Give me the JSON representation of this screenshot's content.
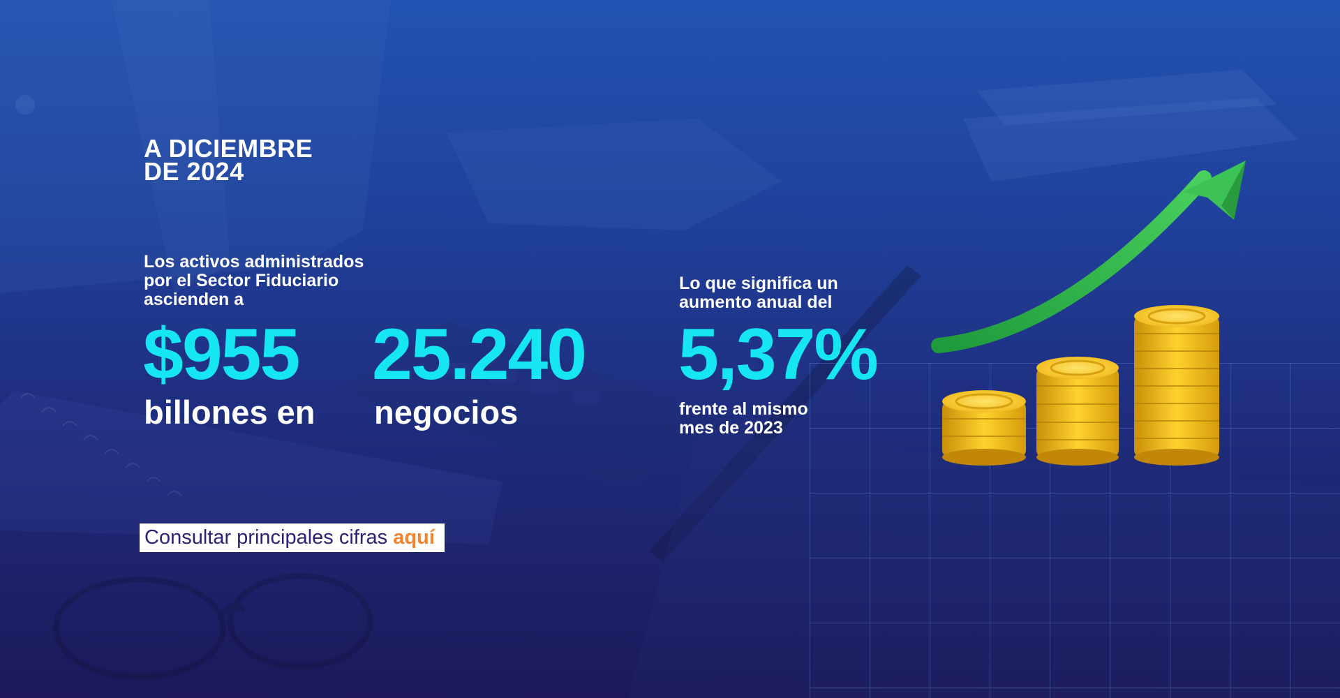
{
  "header": {
    "date_line1": "A DICIEMBRE",
    "date_line2": "DE 2024"
  },
  "intro": {
    "line1": "Los activos administrados",
    "line2": "por el Sector Fiduciario",
    "line3": "ascienden a"
  },
  "stats": {
    "assets_value": "$955",
    "assets_caption": "billones en",
    "business_value": "25.240",
    "business_caption": "negocios",
    "growth_intro_line1": "Lo que significa un",
    "growth_intro_line2": "aumento anual del",
    "growth_value": "5,37%",
    "growth_caption_line1": "frente al mismo",
    "growth_caption_line2": "mes de 2023"
  },
  "cta": {
    "text": "Consultar principales cifras ",
    "link": "aquí"
  },
  "colors": {
    "accent_cyan": "#16e6f2",
    "link_orange": "#f3832e",
    "cta_text": "#2d2276",
    "arrow_green": "#2fb34a",
    "coin_gold": "#f2c21b"
  },
  "icons": {
    "growth_arrow": "upward-curved-arrow-icon",
    "coins": "coin-stack-icon"
  }
}
